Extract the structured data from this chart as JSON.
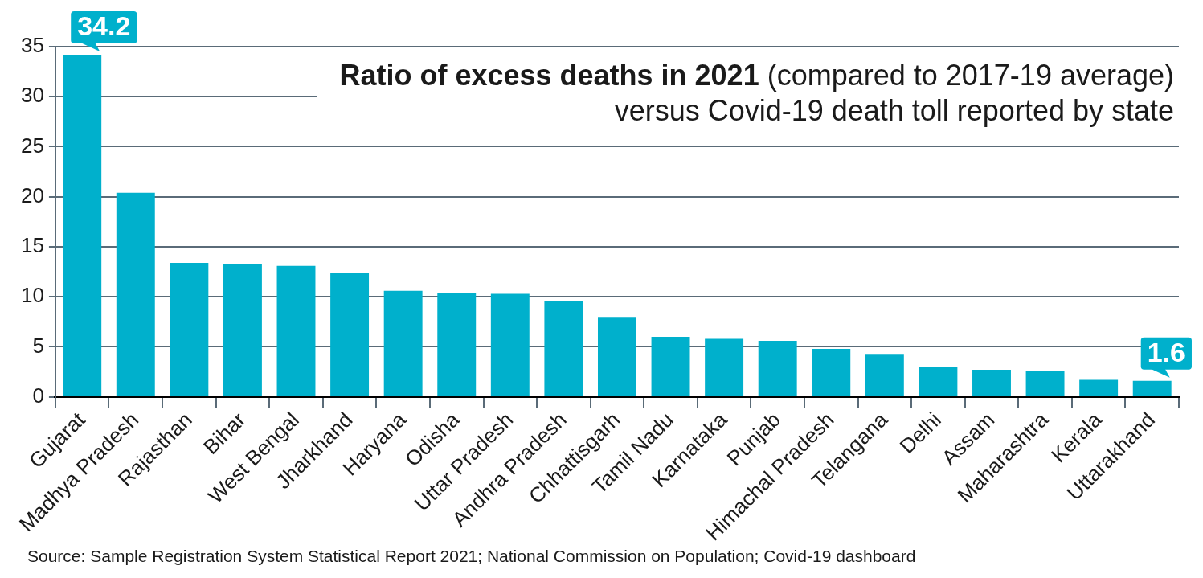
{
  "chart_data": {
    "type": "bar",
    "title": "Ratio of excess deaths in 2021",
    "subtitle": "(compared to 2017-19 average) versus Covid-19 death toll reported by state",
    "categories": [
      "Gujarat",
      "Madhya Pradesh",
      "Rajasthan",
      "Bihar",
      "West Bengal",
      "Jharkhand",
      "Haryana",
      "Odisha",
      "Uttar Pradesh",
      "Andhra Pradesh",
      "Chhattisgarh",
      "Tamil Nadu",
      "Karnataka",
      "Punjab",
      "Himachal Pradesh",
      "Telangana",
      "Delhi",
      "Assam",
      "Maharashtra",
      "Kerala",
      "Uttarakhand"
    ],
    "values": [
      34.2,
      20.4,
      13.4,
      13.3,
      13.1,
      12.4,
      10.6,
      10.4,
      10.3,
      9.6,
      8.0,
      6.0,
      5.8,
      5.6,
      4.8,
      4.3,
      3.0,
      2.7,
      2.6,
      1.7,
      1.6
    ],
    "value_labels": [
      "34.2",
      null,
      null,
      null,
      null,
      null,
      null,
      null,
      null,
      null,
      null,
      null,
      null,
      null,
      null,
      null,
      null,
      null,
      null,
      null,
      "1.6"
    ],
    "color": "#00b0cc",
    "ylim": [
      0,
      35
    ],
    "yticks": [
      0,
      5,
      10,
      15,
      20,
      25,
      30,
      35
    ],
    "grid": "y",
    "annotations": [
      "Source: Sample Registration System Statistical Report 2021; National Commission on Population; Covid-19 dashboard"
    ]
  }
}
